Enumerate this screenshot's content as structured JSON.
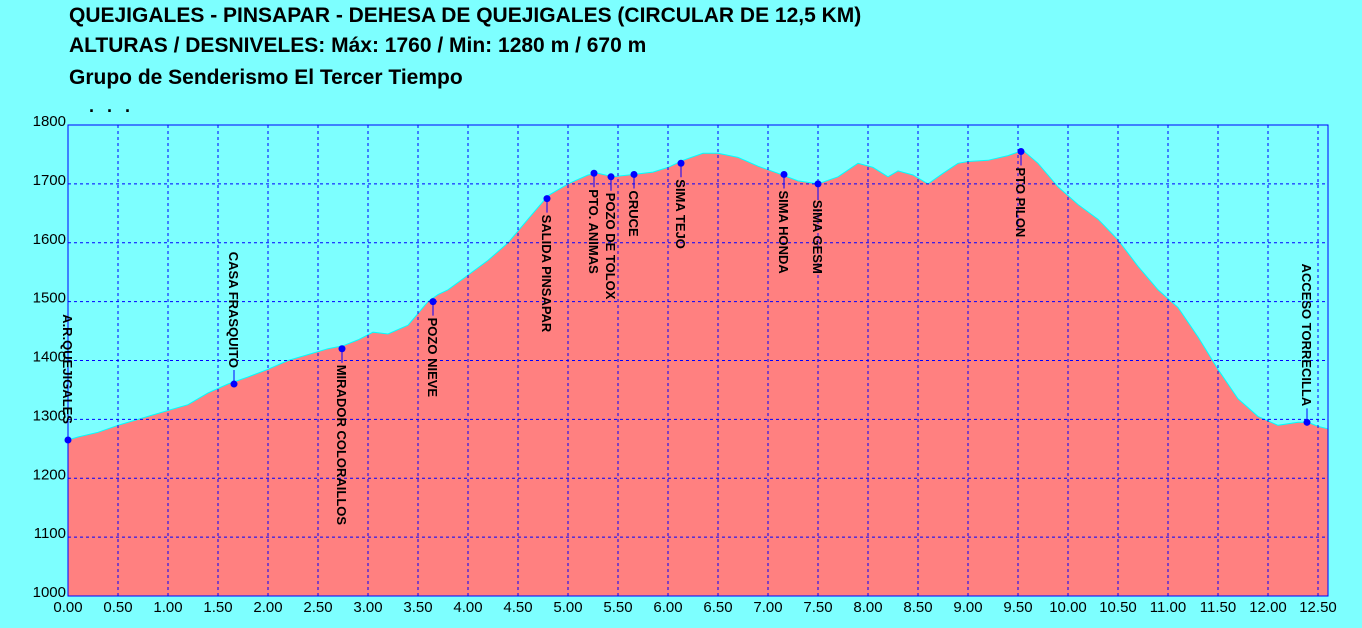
{
  "title_lines": [
    "QUEJIGALES - PINSAPAR - DEHESA DE QUEJIGALES (CIRCULAR DE 12,5 KM)",
    "ALTURAS / DESNIVELES: Máx: 1760 / Min: 1280 m / 670 m",
    "Grupo de Senderismo El Tercer Tiempo"
  ],
  "dots": ". . .",
  "colors": {
    "background": "#7dffff",
    "fill": "#ff8080",
    "profile_line": "#00ffff",
    "grid": "#0000ff",
    "marker": "#0000ff"
  },
  "chart_data": {
    "type": "area",
    "title": "",
    "xlabel": "",
    "ylabel": "",
    "xlim": [
      0,
      12.6
    ],
    "ylim": [
      1000,
      1800
    ],
    "x_ticks": [
      "0.00",
      "0.50",
      "1.00",
      "1.50",
      "2.00",
      "2.50",
      "3.00",
      "3.50",
      "4.00",
      "4.50",
      "5.00",
      "5.50",
      "6.00",
      "6.50",
      "7.00",
      "7.50",
      "8.00",
      "8.50",
      "9.00",
      "9.50",
      "10.00",
      "10.50",
      "11.00",
      "11.50",
      "12.00",
      "12.50"
    ],
    "y_ticks": [
      "1000",
      "1100",
      "1200",
      "1300",
      "1400",
      "1500",
      "1600",
      "1700",
      "1800"
    ],
    "grid": true,
    "profile": {
      "x": [
        0.0,
        0.1,
        0.3,
        0.5,
        0.8,
        1.0,
        1.2,
        1.4,
        1.6,
        1.8,
        2.0,
        2.2,
        2.4,
        2.6,
        2.75,
        2.9,
        3.05,
        3.2,
        3.4,
        3.5,
        3.6,
        3.7,
        3.8,
        4.0,
        4.2,
        4.4,
        4.6,
        4.8,
        5.0,
        5.2,
        5.3,
        5.45,
        5.65,
        5.85,
        6.0,
        6.15,
        6.35,
        6.5,
        6.7,
        6.9,
        7.1,
        7.3,
        7.5,
        7.7,
        7.9,
        8.05,
        8.2,
        8.3,
        8.45,
        8.6,
        8.75,
        8.9,
        9.0,
        9.2,
        9.4,
        9.55,
        9.7,
        9.9,
        10.1,
        10.3,
        10.5,
        10.7,
        10.9,
        11.1,
        11.3,
        11.5,
        11.7,
        11.9,
        12.1,
        12.3,
        12.4,
        12.5,
        12.6
      ],
      "y": [
        1265,
        1270,
        1278,
        1290,
        1305,
        1315,
        1325,
        1345,
        1360,
        1372,
        1385,
        1400,
        1410,
        1420,
        1425,
        1435,
        1448,
        1445,
        1460,
        1480,
        1500,
        1512,
        1520,
        1545,
        1570,
        1600,
        1640,
        1680,
        1700,
        1715,
        1718,
        1712,
        1716,
        1720,
        1728,
        1740,
        1752,
        1752,
        1745,
        1730,
        1718,
        1705,
        1700,
        1712,
        1735,
        1728,
        1712,
        1722,
        1715,
        1700,
        1718,
        1735,
        1738,
        1740,
        1748,
        1757,
        1735,
        1695,
        1665,
        1640,
        1605,
        1560,
        1520,
        1490,
        1440,
        1385,
        1335,
        1305,
        1290,
        1295,
        1295,
        1288,
        1284
      ]
    },
    "waypoints": [
      {
        "name": "A.R.QUEJIGALES",
        "x": 0.0,
        "y": 1265
      },
      {
        "name": "CASA FRASQUITO",
        "x": 1.66,
        "y": 1360
      },
      {
        "name": "MIRADOR COLORAILLOS",
        "x": 2.74,
        "y": 1420
      },
      {
        "name": "POZO NIEVE",
        "x": 3.65,
        "y": 1500
      },
      {
        "name": "SALIDA PINSAPAR",
        "x": 4.79,
        "y": 1675
      },
      {
        "name": "PTO. ANIMAS",
        "x": 5.26,
        "y": 1718
      },
      {
        "name": "POZO DE TOLOX",
        "x": 5.43,
        "y": 1712
      },
      {
        "name": "CRUCE",
        "x": 5.66,
        "y": 1716
      },
      {
        "name": "SIMA TEJO",
        "x": 6.13,
        "y": 1735
      },
      {
        "name": "SIMA HONDA",
        "x": 7.16,
        "y": 1716
      },
      {
        "name": "SIMA GESM",
        "x": 7.5,
        "y": 1700
      },
      {
        "name": "PTO PILON",
        "x": 9.53,
        "y": 1755
      },
      {
        "name": "ACCESO TORRECILLA",
        "x": 12.39,
        "y": 1295
      }
    ]
  }
}
